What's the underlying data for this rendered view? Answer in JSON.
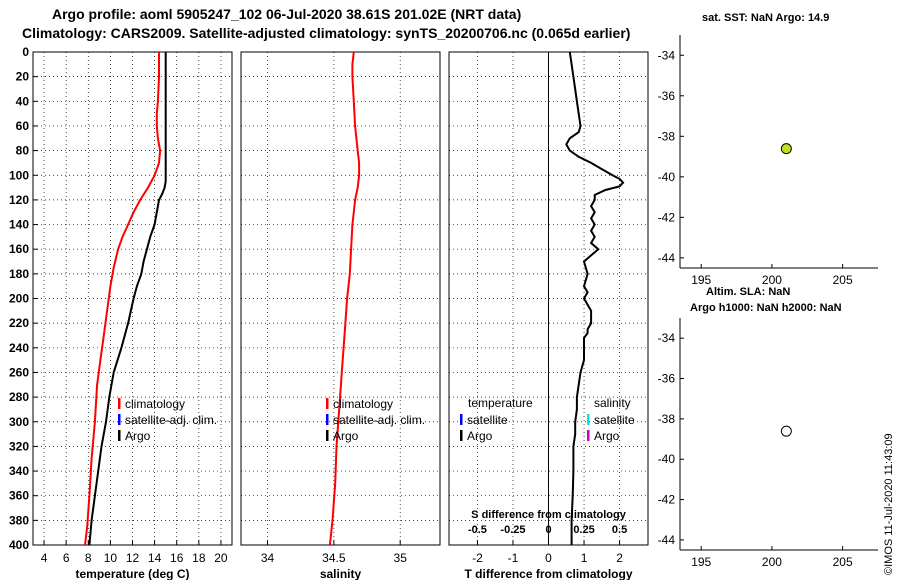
{
  "header": {
    "line1": "Argo profile: aoml 5905247_102 06-Jul-2020 38.61S 201.02E (NRT data)",
    "line2": "Climatology: CARS2009. Satellite-adjusted climatology: synTS_20200706.nc (0.065d earlier)"
  },
  "side": {
    "sst_title": "sat. SST: NaN Argo: 14.9",
    "sla_title": "Altim. SLA: NaN",
    "h_title": "Argo h1000: NaN h2000: NaN"
  },
  "timestamp": "©IMOS 11-Jul-2020 11:43:09",
  "colors": {
    "climatology": "#ff0000",
    "satellite": "#0000ff",
    "argo": "#000000",
    "sal_sat": "#00e5ee",
    "sal_argo": "#cc00cc",
    "marker_fill": "#c0e020"
  },
  "chart_data": [
    {
      "id": "temperature",
      "type": "line",
      "xlabel": "temperature (deg C)",
      "ylabel": "",
      "xlim": [
        3,
        21
      ],
      "ylim": [
        400,
        0
      ],
      "xticks": [
        4,
        6,
        8,
        10,
        12,
        14,
        16,
        18,
        20
      ],
      "yticks": [
        0,
        20,
        40,
        60,
        80,
        100,
        120,
        140,
        160,
        180,
        200,
        220,
        240,
        260,
        280,
        300,
        320,
        340,
        360,
        380,
        400
      ],
      "grid": true,
      "legend": [
        "climatology",
        "satellite-adj. clim.",
        "Argo"
      ],
      "series": [
        {
          "name": "climatology",
          "color": "#ff0000",
          "x": [
            14.4,
            14.4,
            14.3,
            14.2,
            14.2,
            14.3,
            14.5,
            14.4,
            14.0,
            13.4,
            12.7,
            12.1,
            11.6,
            11.1,
            10.7,
            10.3,
            10.0,
            9.7,
            9.4,
            9.1,
            8.8,
            8.6,
            8.3,
            8.1,
            7.9,
            7.7
          ],
          "y": [
            0,
            20,
            40,
            50,
            60,
            70,
            80,
            90,
            100,
            110,
            120,
            130,
            140,
            150,
            160,
            175,
            190,
            210,
            230,
            250,
            270,
            300,
            330,
            360,
            385,
            400
          ]
        },
        {
          "name": "satellite-adj. clim.",
          "color": "#0000ff",
          "x": [],
          "y": []
        },
        {
          "name": "Argo",
          "color": "#000000",
          "x": [
            15.0,
            15.0,
            15.0,
            15.0,
            15.0,
            15.0,
            15.0,
            14.9,
            14.7,
            14.4,
            14.2,
            14.0,
            13.6,
            13.3,
            13.0,
            12.8,
            12.4,
            12.1,
            11.6,
            11.0,
            10.3,
            9.9,
            9.6,
            9.2,
            8.9,
            8.6,
            8.3,
            8.1
          ],
          "y": [
            0,
            20,
            40,
            60,
            80,
            100,
            105,
            110,
            115,
            120,
            130,
            140,
            150,
            160,
            170,
            180,
            190,
            200,
            220,
            240,
            260,
            280,
            300,
            320,
            340,
            360,
            380,
            400
          ]
        }
      ]
    },
    {
      "id": "salinity",
      "type": "line",
      "xlabel": "salinity",
      "ylabel": "",
      "xlim": [
        33.8,
        35.3
      ],
      "ylim": [
        400,
        0
      ],
      "xticks": [
        34,
        34.5,
        35
      ],
      "xticklabels": [
        "34",
        "34.5",
        "35"
      ],
      "grid": true,
      "legend": [
        "climatology",
        "satellite-adj. clim.",
        "Argo"
      ],
      "series": [
        {
          "name": "climatology",
          "color": "#ff0000",
          "x": [
            34.65,
            34.64,
            34.64,
            34.65,
            34.66,
            34.68,
            34.69,
            34.69,
            34.68,
            34.66,
            34.65,
            34.64,
            34.63,
            34.62,
            34.6,
            34.58,
            34.56,
            34.54,
            34.52,
            34.51,
            34.49,
            34.47
          ],
          "y": [
            0,
            10,
            20,
            40,
            60,
            80,
            90,
            100,
            110,
            120,
            130,
            140,
            160,
            180,
            200,
            230,
            260,
            290,
            320,
            350,
            380,
            400
          ]
        },
        {
          "name": "satellite-adj. clim.",
          "color": "#0000ff",
          "x": [],
          "y": []
        },
        {
          "name": "Argo",
          "color": "#000000",
          "x": [],
          "y": []
        }
      ]
    },
    {
      "id": "difference",
      "type": "line",
      "xlabel": "T difference from climatology",
      "x2label": "S difference from climatology",
      "xlim": [
        -2.8,
        2.8
      ],
      "ylim": [
        400,
        0
      ],
      "xticks": [
        -2,
        -1,
        0,
        1,
        2
      ],
      "xticklabels": [
        "-2",
        "-1",
        "0",
        "1",
        "2"
      ],
      "x2ticklabels": [
        "-0.5",
        "-0.25",
        "0",
        "0.25",
        "0.5"
      ],
      "grid": true,
      "legend_temperature": {
        "title": "temperature",
        "items": [
          "satellite",
          "Argo"
        ]
      },
      "legend_salinity": {
        "title": "salinity",
        "items": [
          "satellite",
          "Argo"
        ]
      },
      "series": [
        {
          "name": "T difference (Argo)",
          "color": "#000000",
          "x": [
            0.6,
            0.7,
            0.8,
            0.85,
            0.9,
            0.85,
            0.6,
            0.5,
            0.6,
            0.85,
            1.2,
            1.5,
            1.8,
            2.0,
            2.1,
            2.0,
            1.6,
            1.3,
            1.3,
            1.2,
            1.3,
            1.2,
            1.3,
            1.2,
            1.3,
            1.2,
            1.4,
            1.2,
            1.0,
            1.1,
            1.0,
            1.1,
            1.0,
            1.2,
            1.2,
            1.1,
            1.1,
            1.0,
            1.0,
            1.0,
            0.9,
            0.85,
            0.8,
            0.8,
            0.75,
            0.75,
            0.7,
            0.7,
            0.68,
            0.65,
            0.65
          ],
          "y": [
            0,
            20,
            40,
            50,
            60,
            65,
            70,
            75,
            80,
            85,
            90,
            95,
            100,
            103,
            106,
            109,
            112,
            116,
            120,
            125,
            130,
            135,
            140,
            145,
            150,
            155,
            160,
            165,
            170,
            180,
            190,
            195,
            200,
            210,
            220,
            225,
            228,
            232,
            240,
            250,
            260,
            270,
            280,
            290,
            300,
            310,
            320,
            340,
            360,
            380,
            400
          ]
        }
      ]
    },
    {
      "id": "sst_map",
      "type": "scatter",
      "title": "sat. SST: NaN Argo: 14.9",
      "xlim": [
        193.5,
        207.5
      ],
      "ylim": [
        -44.5,
        -33
      ],
      "xticks": [
        195,
        200,
        205
      ],
      "yticks": [
        -34,
        -36,
        -38,
        -40,
        -42,
        -44
      ],
      "series": [
        {
          "name": "Argo float",
          "x": [
            201.02
          ],
          "y": [
            -38.61
          ],
          "fill": "#c0e020"
        }
      ]
    },
    {
      "id": "sla_map",
      "type": "scatter",
      "title": "Altim. SLA: NaN",
      "xlim": [
        193.5,
        207.5
      ],
      "ylim": [
        -44.5,
        -33
      ],
      "xticks": [
        195,
        200,
        205
      ],
      "yticks": [
        -34,
        -36,
        -38,
        -40,
        -42,
        -44
      ],
      "series": [
        {
          "name": "Argo float",
          "x": [
            201.02
          ],
          "y": [
            -38.61
          ],
          "fill": "#ffffff"
        }
      ]
    }
  ]
}
